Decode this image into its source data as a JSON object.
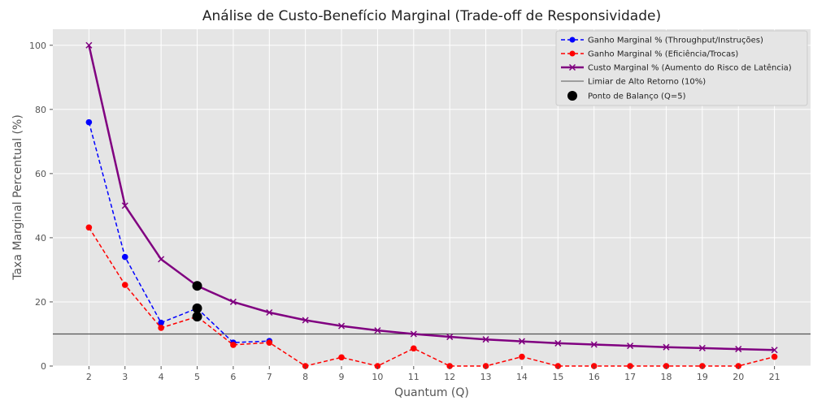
{
  "chart_data": {
    "type": "line",
    "title": "Análise de Custo-Benefício Marginal (Trade-off de Responsividade)",
    "xlabel": "Quantum (Q)",
    "ylabel": "Taxa Marginal Percentual (%)",
    "xlim": [
      1,
      22
    ],
    "ylim": [
      0,
      105
    ],
    "grid": true,
    "legend_position": "top-right",
    "x": [
      2,
      3,
      4,
      5,
      6,
      7,
      8,
      9,
      10,
      11,
      12,
      13,
      14,
      15,
      16,
      17,
      18,
      19,
      20,
      21
    ],
    "x_ticks": [
      2,
      3,
      4,
      5,
      6,
      7,
      8,
      9,
      10,
      11,
      12,
      13,
      14,
      15,
      16,
      17,
      18,
      19,
      20,
      21
    ],
    "y_ticks": [
      0,
      20,
      40,
      60,
      80,
      100
    ],
    "series": [
      {
        "name": "Ganho Marginal % (Throughput/Instruções)",
        "color": "#0000ff",
        "style": "dashed",
        "marker": "circle",
        "x": [
          2,
          3,
          4,
          5,
          6,
          7
        ],
        "values": [
          76,
          34,
          13.5,
          18,
          7.3,
          7.8
        ]
      },
      {
        "name": "Ganho Marginal % (Eficiência/Trocas)",
        "color": "#ff0000",
        "style": "dashed",
        "marker": "circle",
        "x": [
          2,
          3,
          4,
          5,
          6,
          7,
          8,
          9,
          10,
          11,
          12,
          13,
          14,
          15,
          16,
          17,
          18,
          19,
          20,
          21
        ],
        "values": [
          43.2,
          25.3,
          11.9,
          15.4,
          6.6,
          7.3,
          0,
          2.7,
          0,
          5.5,
          0,
          0,
          2.9,
          0,
          0,
          0,
          0,
          0,
          0,
          2.9
        ]
      },
      {
        "name": "Custo Marginal % (Aumento do Risco de Latência)",
        "color": "#800080",
        "style": "solid",
        "marker": "x",
        "x": [
          2,
          3,
          4,
          5,
          6,
          7,
          8,
          9,
          10,
          11,
          12,
          13,
          14,
          15,
          16,
          17,
          18,
          19,
          20,
          21
        ],
        "values": [
          100,
          50,
          33.3,
          25,
          20,
          16.7,
          14.3,
          12.5,
          11.1,
          10,
          9.1,
          8.3,
          7.7,
          7.1,
          6.7,
          6.3,
          5.9,
          5.6,
          5.3,
          5
        ]
      }
    ],
    "threshold": {
      "name": "Limiar de Alto Retorno (10%)",
      "value": 10,
      "color": "#555555"
    },
    "balance_points": {
      "name": "Ponto de Balanço (Q=5)",
      "color": "#000000",
      "x": 5,
      "values": [
        25,
        18,
        15.4
      ]
    }
  }
}
